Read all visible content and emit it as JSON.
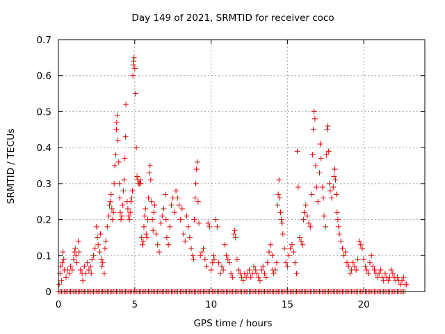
{
  "chart_data": {
    "type": "scatter",
    "title": "Day 149 of 2021, SRMTID for receiver coco",
    "xlabel": "GPS time / hours",
    "ylabel": "SRMTID / TECUs",
    "xlim": [
      0,
      24
    ],
    "ylim": [
      0,
      0.7
    ],
    "xticks": [
      0,
      5,
      10,
      15,
      20
    ],
    "yticks": [
      0,
      0.1,
      0.2,
      0.3,
      0.4,
      0.5,
      0.6,
      0.7
    ],
    "grid": true,
    "marker": "+",
    "color": "#e00000",
    "series": [
      {
        "name": "SRMTID",
        "points": [
          [
            0.05,
            0.02
          ],
          [
            0.1,
            0.05
          ],
          [
            0.15,
            0.07
          ],
          [
            0.2,
            0.03
          ],
          [
            0.25,
            0.08
          ],
          [
            0.3,
            0.11
          ],
          [
            0.35,
            0.09
          ],
          [
            0.4,
            0.06
          ],
          [
            0.5,
            0.04
          ],
          [
            0.6,
            0.06
          ],
          [
            0.7,
            0.05
          ],
          [
            0.8,
            0.07
          ],
          [
            0.9,
            0.06
          ],
          [
            1.0,
            0.09
          ],
          [
            1.05,
            0.11
          ],
          [
            1.1,
            0.12
          ],
          [
            1.15,
            0.1
          ],
          [
            1.2,
            0.08
          ],
          [
            1.3,
            0.14
          ],
          [
            1.35,
            0.11
          ],
          [
            1.45,
            0.06
          ],
          [
            1.55,
            0.05
          ],
          [
            1.6,
            0.03
          ],
          [
            1.7,
            0.07
          ],
          [
            1.8,
            0.05
          ],
          [
            1.9,
            0.08
          ],
          [
            2.0,
            0.06
          ],
          [
            2.1,
            0.07
          ],
          [
            2.15,
            0.05
          ],
          [
            2.2,
            0.09
          ],
          [
            2.3,
            0.1
          ],
          [
            2.4,
            0.12
          ],
          [
            2.5,
            0.18
          ],
          [
            2.55,
            0.15
          ],
          [
            2.6,
            0.13
          ],
          [
            2.7,
            0.11
          ],
          [
            2.75,
            0.16
          ],
          [
            2.8,
            0.09
          ],
          [
            2.85,
            0.07
          ],
          [
            2.9,
            0.08
          ],
          [
            3.0,
            0.05
          ],
          [
            3.05,
            0.12
          ],
          [
            3.1,
            0.14
          ],
          [
            3.2,
            0.18
          ],
          [
            3.3,
            0.21
          ],
          [
            3.35,
            0.24
          ],
          [
            3.4,
            0.25
          ],
          [
            3.45,
            0.27
          ],
          [
            3.5,
            0.23
          ],
          [
            3.55,
            0.2
          ],
          [
            3.6,
            0.22
          ],
          [
            3.65,
            0.3
          ],
          [
            3.7,
            0.35
          ],
          [
            3.75,
            0.38
          ],
          [
            3.8,
            0.45
          ],
          [
            3.82,
            0.47
          ],
          [
            3.85,
            0.49
          ],
          [
            3.9,
            0.42
          ],
          [
            3.95,
            0.36
          ],
          [
            4.0,
            0.3
          ],
          [
            4.02,
            0.26
          ],
          [
            4.05,
            0.22
          ],
          [
            4.1,
            0.2
          ],
          [
            4.15,
            0.21
          ],
          [
            4.2,
            0.24
          ],
          [
            4.25,
            0.28
          ],
          [
            4.3,
            0.31
          ],
          [
            4.35,
            0.37
          ],
          [
            4.4,
            0.43
          ],
          [
            4.42,
            0.52
          ],
          [
            4.5,
            0.25
          ],
          [
            4.55,
            0.23
          ],
          [
            4.6,
            0.21
          ],
          [
            4.65,
            0.2
          ],
          [
            4.7,
            0.22
          ],
          [
            4.75,
            0.25
          ],
          [
            4.8,
            0.26
          ],
          [
            4.85,
            0.28
          ],
          [
            4.88,
            0.6
          ],
          [
            4.9,
            0.63
          ],
          [
            4.92,
            0.64
          ],
          [
            4.95,
            0.65
          ],
          [
            5.0,
            0.62
          ],
          [
            5.05,
            0.55
          ],
          [
            5.1,
            0.4
          ],
          [
            5.15,
            0.32
          ],
          [
            5.2,
            0.31
          ],
          [
            5.25,
            0.3
          ],
          [
            5.3,
            0.3
          ],
          [
            5.35,
            0.31
          ],
          [
            5.4,
            0.3
          ],
          [
            5.45,
            0.15
          ],
          [
            5.5,
            0.13
          ],
          [
            5.55,
            0.14
          ],
          [
            5.6,
            0.18
          ],
          [
            5.65,
            0.21
          ],
          [
            5.7,
            0.23
          ],
          [
            5.75,
            0.16
          ],
          [
            5.8,
            0.15
          ],
          [
            5.85,
            0.2
          ],
          [
            5.9,
            0.26
          ],
          [
            5.95,
            0.33
          ],
          [
            6.0,
            0.35
          ],
          [
            6.05,
            0.31
          ],
          [
            6.1,
            0.25
          ],
          [
            6.15,
            0.2
          ],
          [
            6.2,
            0.17
          ],
          [
            6.25,
            0.22
          ],
          [
            6.3,
            0.24
          ],
          [
            6.4,
            0.16
          ],
          [
            6.5,
            0.13
          ],
          [
            6.6,
            0.11
          ],
          [
            6.7,
            0.19
          ],
          [
            6.8,
            0.21
          ],
          [
            6.9,
            0.23
          ],
          [
            7.0,
            0.27
          ],
          [
            7.05,
            0.2
          ],
          [
            7.1,
            0.15
          ],
          [
            7.2,
            0.13
          ],
          [
            7.3,
            0.18
          ],
          [
            7.4,
            0.24
          ],
          [
            7.5,
            0.26
          ],
          [
            7.6,
            0.22
          ],
          [
            7.7,
            0.28
          ],
          [
            7.8,
            0.26
          ],
          [
            7.9,
            0.24
          ],
          [
            8.0,
            0.2
          ],
          [
            8.1,
            0.23
          ],
          [
            8.2,
            0.16
          ],
          [
            8.3,
            0.14
          ],
          [
            8.4,
            0.21
          ],
          [
            8.5,
            0.18
          ],
          [
            8.6,
            0.15
          ],
          [
            8.7,
            0.12
          ],
          [
            8.8,
            0.1
          ],
          [
            8.85,
            0.09
          ],
          [
            8.9,
            0.2
          ],
          [
            8.95,
            0.26
          ],
          [
            9.0,
            0.3
          ],
          [
            9.05,
            0.34
          ],
          [
            9.1,
            0.36
          ],
          [
            9.15,
            0.25
          ],
          [
            9.2,
            0.19
          ],
          [
            9.3,
            0.1
          ],
          [
            9.4,
            0.11
          ],
          [
            9.5,
            0.12
          ],
          [
            9.6,
            0.09
          ],
          [
            9.7,
            0.07
          ],
          [
            9.8,
            0.19
          ],
          [
            9.9,
            0.18
          ],
          [
            10.0,
            0.06
          ],
          [
            10.1,
            0.08
          ],
          [
            10.15,
            0.1
          ],
          [
            10.2,
            0.09
          ],
          [
            10.3,
            0.2
          ],
          [
            10.4,
            0.18
          ],
          [
            10.5,
            0.08
          ],
          [
            10.6,
            0.05
          ],
          [
            10.7,
            0.07
          ],
          [
            10.8,
            0.06
          ],
          [
            10.9,
            0.13
          ],
          [
            11.0,
            0.1
          ],
          [
            11.1,
            0.09
          ],
          [
            11.2,
            0.08
          ],
          [
            11.3,
            0.05
          ],
          [
            11.4,
            0.04
          ],
          [
            11.5,
            0.16
          ],
          [
            11.55,
            0.17
          ],
          [
            11.6,
            0.15
          ],
          [
            11.7,
            0.09
          ],
          [
            11.8,
            0.06
          ],
          [
            11.9,
            0.05
          ],
          [
            12.0,
            0.04
          ],
          [
            12.1,
            0.03
          ],
          [
            12.2,
            0.05
          ],
          [
            12.3,
            0.04
          ],
          [
            12.4,
            0.05
          ],
          [
            12.5,
            0.06
          ],
          [
            12.6,
            0.04
          ],
          [
            12.7,
            0.05
          ],
          [
            12.8,
            0.07
          ],
          [
            12.9,
            0.06
          ],
          [
            13.0,
            0.05
          ],
          [
            13.1,
            0.04
          ],
          [
            13.2,
            0.03
          ],
          [
            13.3,
            0.06
          ],
          [
            13.4,
            0.07
          ],
          [
            13.5,
            0.05
          ],
          [
            13.6,
            0.04
          ],
          [
            13.7,
            0.08
          ],
          [
            13.8,
            0.11
          ],
          [
            13.9,
            0.13
          ],
          [
            14.0,
            0.1
          ],
          [
            14.05,
            0.06
          ],
          [
            14.1,
            0.05
          ],
          [
            14.2,
            0.06
          ],
          [
            14.3,
            0.08
          ],
          [
            14.35,
            0.24
          ],
          [
            14.4,
            0.27
          ],
          [
            14.45,
            0.31
          ],
          [
            14.5,
            0.26
          ],
          [
            14.55,
            0.22
          ],
          [
            14.6,
            0.2
          ],
          [
            14.65,
            0.19
          ],
          [
            14.7,
            0.16
          ],
          [
            14.8,
            0.12
          ],
          [
            14.9,
            0.08
          ],
          [
            15.0,
            0.07
          ],
          [
            15.1,
            0.1
          ],
          [
            15.2,
            0.12
          ],
          [
            15.3,
            0.13
          ],
          [
            15.4,
            0.11
          ],
          [
            15.5,
            0.08
          ],
          [
            15.6,
            0.05
          ],
          [
            15.65,
            0.39
          ],
          [
            15.7,
            0.29
          ],
          [
            15.8,
            0.15
          ],
          [
            15.9,
            0.14
          ],
          [
            16.0,
            0.13
          ],
          [
            16.05,
            0.2
          ],
          [
            16.1,
            0.22
          ],
          [
            16.2,
            0.24
          ],
          [
            16.3,
            0.21
          ],
          [
            16.4,
            0.19
          ],
          [
            16.5,
            0.18
          ],
          [
            16.6,
            0.27
          ],
          [
            16.65,
            0.38
          ],
          [
            16.7,
            0.45
          ],
          [
            16.75,
            0.5
          ],
          [
            16.8,
            0.48
          ],
          [
            16.85,
            0.35
          ],
          [
            16.9,
            0.29
          ],
          [
            17.0,
            0.25
          ],
          [
            17.1,
            0.33
          ],
          [
            17.15,
            0.41
          ],
          [
            17.2,
            0.37
          ],
          [
            17.3,
            0.29
          ],
          [
            17.35,
            0.26
          ],
          [
            17.4,
            0.21
          ],
          [
            17.5,
            0.18
          ],
          [
            17.55,
            0.38
          ],
          [
            17.6,
            0.45
          ],
          [
            17.65,
            0.46
          ],
          [
            17.7,
            0.39
          ],
          [
            17.75,
            0.3
          ],
          [
            17.8,
            0.28
          ],
          [
            17.9,
            0.26
          ],
          [
            18.0,
            0.29
          ],
          [
            18.05,
            0.32
          ],
          [
            18.1,
            0.34
          ],
          [
            18.15,
            0.31
          ],
          [
            18.2,
            0.27
          ],
          [
            18.25,
            0.22
          ],
          [
            18.3,
            0.2
          ],
          [
            18.35,
            0.18
          ],
          [
            18.4,
            0.16
          ],
          [
            18.5,
            0.14
          ],
          [
            18.6,
            0.12
          ],
          [
            18.7,
            0.1
          ],
          [
            18.8,
            0.11
          ],
          [
            18.9,
            0.08
          ],
          [
            19.0,
            0.07
          ],
          [
            19.1,
            0.05
          ],
          [
            19.2,
            0.06
          ],
          [
            19.3,
            0.08
          ],
          [
            19.4,
            0.07
          ],
          [
            19.5,
            0.06
          ],
          [
            19.6,
            0.09
          ],
          [
            19.7,
            0.14
          ],
          [
            19.8,
            0.13
          ],
          [
            19.9,
            0.12
          ],
          [
            20.0,
            0.09
          ],
          [
            20.1,
            0.07
          ],
          [
            20.2,
            0.06
          ],
          [
            20.3,
            0.05
          ],
          [
            20.4,
            0.08
          ],
          [
            20.5,
            0.1
          ],
          [
            20.6,
            0.07
          ],
          [
            20.7,
            0.06
          ],
          [
            20.8,
            0.05
          ],
          [
            20.9,
            0.04
          ],
          [
            21.0,
            0.05
          ],
          [
            21.1,
            0.06
          ],
          [
            21.2,
            0.04
          ],
          [
            21.3,
            0.03
          ],
          [
            21.4,
            0.05
          ],
          [
            21.5,
            0.04
          ],
          [
            21.6,
            0.03
          ],
          [
            21.7,
            0.04
          ],
          [
            21.8,
            0.06
          ],
          [
            21.9,
            0.05
          ],
          [
            22.0,
            0.04
          ],
          [
            22.1,
            0.03
          ],
          [
            22.2,
            0.04
          ],
          [
            22.3,
            0.03
          ],
          [
            22.4,
            0.02
          ],
          [
            22.5,
            0.03
          ],
          [
            22.6,
            0.04
          ],
          [
            22.7,
            0.02
          ],
          [
            22.8,
            0.02
          ]
        ]
      }
    ],
    "baseline_series": {
      "name": "zero-level",
      "x_start": 0,
      "x_end": 22.7,
      "x_step": 0.1,
      "y": 0
    }
  }
}
